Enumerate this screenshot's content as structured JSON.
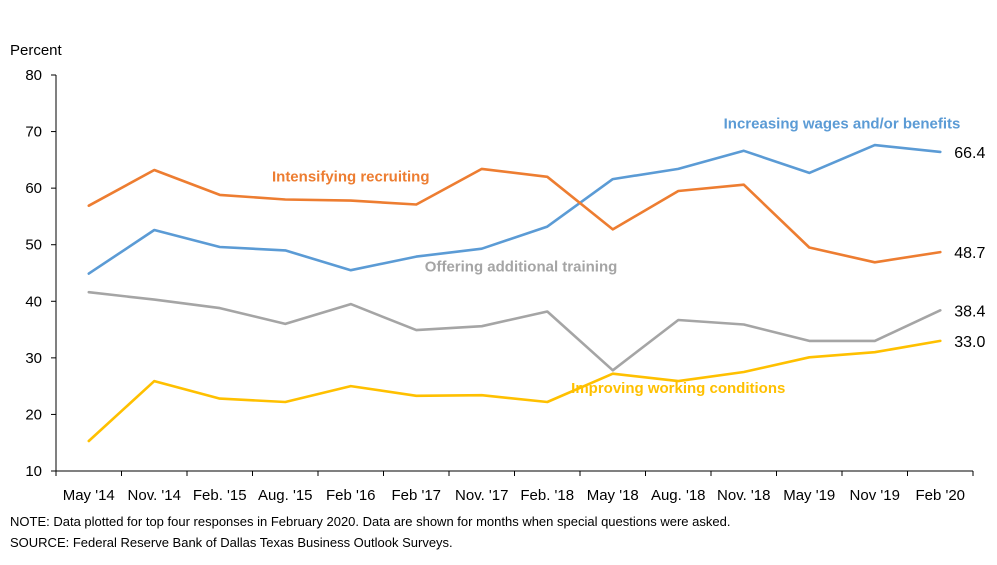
{
  "chart_data": {
    "type": "line",
    "ylabel": "Percent",
    "ylim": [
      10,
      80
    ],
    "yticks": [
      10,
      20,
      30,
      40,
      50,
      60,
      70,
      80
    ],
    "categories": [
      "May '14",
      "Nov. '14",
      "Feb. '15",
      "Aug. '15",
      "Feb '16",
      "Feb '17",
      "Nov. '17",
      "Feb. '18",
      "May '18",
      "Aug. '18",
      "Nov. '18",
      "May '19",
      "Nov '19",
      "Feb '20"
    ],
    "grid": false,
    "series": [
      {
        "name": "Increasing wages and/or benefits",
        "color": "#5b9bd5",
        "end_label": "66.4",
        "values": [
          44.9,
          52.6,
          49.6,
          49.0,
          45.5,
          47.9,
          49.3,
          53.2,
          61.6,
          63.4,
          66.6,
          62.7,
          67.6,
          66.4
        ]
      },
      {
        "name": "Intensifying recruiting",
        "color": "#ed7d31",
        "end_label": "48.7",
        "values": [
          56.9,
          63.2,
          58.8,
          58.0,
          57.8,
          57.1,
          63.4,
          62.0,
          52.7,
          59.5,
          60.6,
          49.5,
          46.9,
          48.7
        ]
      },
      {
        "name": "Offering additional training",
        "color": "#a5a5a5",
        "end_label": "38.4",
        "values": [
          41.6,
          40.3,
          38.8,
          36.0,
          39.5,
          34.9,
          35.6,
          38.2,
          27.8,
          36.7,
          35.9,
          33.0,
          33.0,
          38.4
        ]
      },
      {
        "name": "Improving working conditions",
        "color": "#ffc000",
        "end_label": "33.0",
        "values": [
          15.3,
          25.9,
          22.8,
          22.2,
          25.0,
          23.3,
          23.4,
          22.2,
          27.2,
          25.9,
          27.5,
          30.1,
          31.0,
          33.0
        ]
      }
    ]
  },
  "notes": {
    "note": "NOTE: Data plotted for top four responses in February 2020. Data are shown for months when special questions were asked.",
    "source": "SOURCE: Federal Reserve Bank of Dallas Texas Business Outlook Surveys."
  }
}
